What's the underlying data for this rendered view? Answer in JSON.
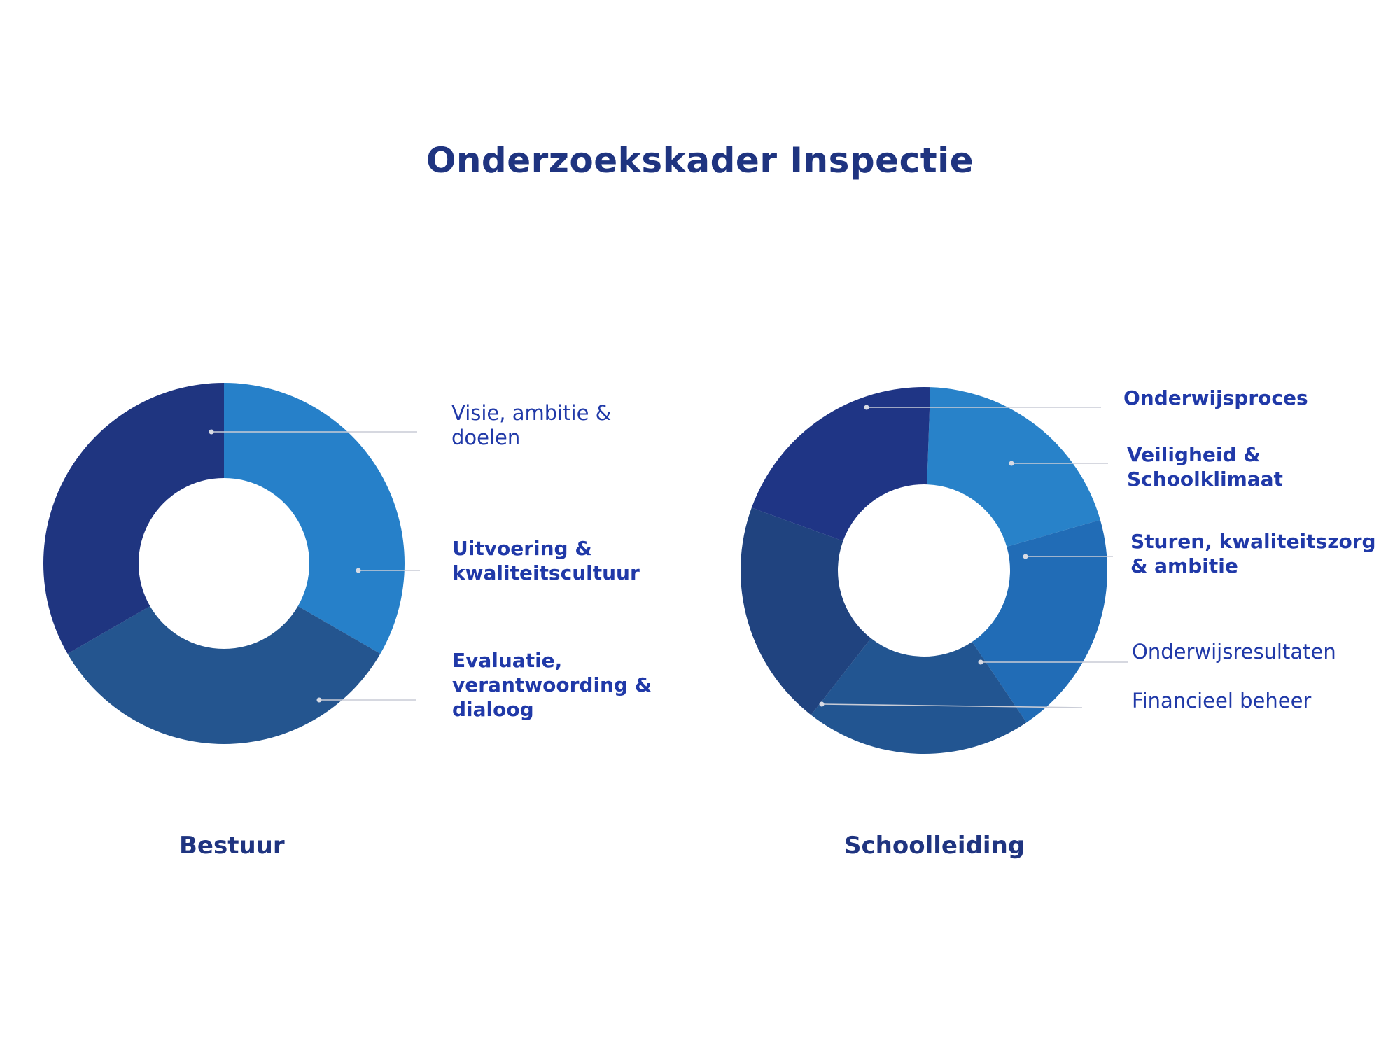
{
  "title": "Onderzoekskader Inspectie",
  "chart_data": [
    {
      "type": "pie",
      "title": "Bestuur",
      "categories": [
        "Visie, ambitie & doelen",
        "Uitvoering & kwaliteitscultuur",
        "Evaluatie, verantwoording & dialoog"
      ],
      "values": [
        33.3,
        33.3,
        33.3
      ],
      "colors": [
        "#2680c9",
        "#24558f",
        "#1f3580"
      ]
    },
    {
      "type": "pie",
      "title": "Schoolleiding",
      "categories": [
        "Veiligheid & Schoolklimaat",
        "Sturen, kwaliteitszorg & ambitie",
        "Onderwijsresultaten",
        "Financieel beheer",
        "Onderwijsproces"
      ],
      "values": [
        20,
        20,
        20,
        20,
        20
      ],
      "colors": [
        "#2882c9",
        "#216cb6",
        "#225591",
        "#20437f",
        "#1f3585"
      ]
    }
  ],
  "labels": {
    "bestuur": {
      "visie": [
        "Visie, ambitie &",
        "doelen"
      ],
      "uitvoering": [
        "Uitvoering &",
        "kwaliteitscultuur"
      ],
      "evaluatie": [
        "Evaluatie,",
        "verantwoording &",
        "dialoog"
      ]
    },
    "school": {
      "onderwijsproces": [
        "Onderwijsproces"
      ],
      "veiligheid": [
        "Veiligheid &",
        "Schoolklimaat"
      ],
      "sturen": [
        "Sturen, kwaliteitszorg",
        "& ambitie"
      ],
      "resultaten": [
        "Onderwijsresultaten"
      ],
      "financieel": [
        "Financieel beheer"
      ]
    }
  }
}
